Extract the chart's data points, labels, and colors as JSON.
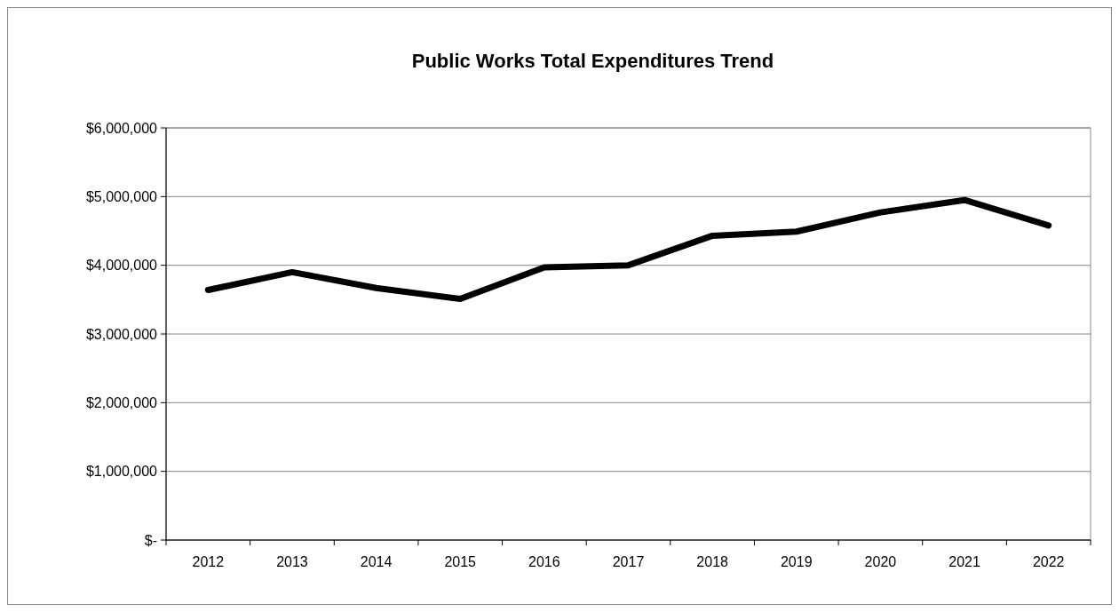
{
  "chart_data": {
    "type": "line",
    "title": "Public Works Total Expenditures Trend",
    "categories": [
      "2012",
      "2013",
      "2014",
      "2015",
      "2016",
      "2017",
      "2018",
      "2019",
      "2020",
      "2021",
      "2022"
    ],
    "series": [
      {
        "color": "#000000",
        "values": [
          3640000,
          3900000,
          3670000,
          3510000,
          3970000,
          4000000,
          4430000,
          4490000,
          4770000,
          4950000,
          4580000
        ]
      }
    ],
    "ylim": [
      0,
      6000000
    ],
    "yticks": [
      {
        "value": 0,
        "label": "$-"
      },
      {
        "value": 1000000,
        "label": "$1,000,000"
      },
      {
        "value": 2000000,
        "label": "$2,000,000"
      },
      {
        "value": 3000000,
        "label": "$3,000,000"
      },
      {
        "value": 4000000,
        "label": "$4,000,000"
      },
      {
        "value": 5000000,
        "label": "$5,000,000"
      },
      {
        "value": 6000000,
        "label": "$6,000,000"
      }
    ],
    "grid": "y",
    "marker": "none",
    "line_style": "solid"
  }
}
